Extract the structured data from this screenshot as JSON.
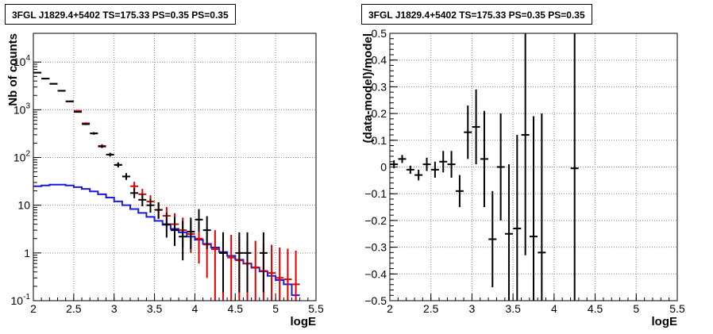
{
  "chart_data": [
    {
      "type": "scatter",
      "title": "3FGL J1829.4+5402 TS=175.33 PS=0.35 PS=0.35",
      "xlabel": "logE",
      "ylabel": "Nb of counts",
      "xlim": [
        2,
        5.5
      ],
      "ylim": [
        0.1,
        40000
      ],
      "yscale": "log",
      "grid": true,
      "xticks": [
        "2",
        "2.5",
        "3",
        "3.5",
        "4",
        "4.5",
        "5",
        "5.5"
      ],
      "yticks": [
        "10^-1",
        "1",
        "10",
        "10^2",
        "10^3",
        "10^4"
      ],
      "series": [
        {
          "kind": "errorbar",
          "color": "#000000",
          "x": [
            2.05,
            2.15,
            2.25,
            2.35,
            2.45,
            2.55,
            2.65,
            2.75,
            2.85,
            2.95,
            3.05,
            3.15,
            3.25,
            3.35,
            3.45,
            3.55,
            3.65,
            3.75,
            3.85,
            3.95,
            4.05,
            4.15,
            4.35,
            4.55,
            4.65,
            4.85
          ],
          "y": [
            6000,
            4500,
            3500,
            2500,
            1500,
            900,
            500,
            320,
            170,
            115,
            70,
            40,
            18,
            13,
            10,
            8,
            4,
            3,
            2.2,
            2.8,
            5,
            3,
            1,
            1,
            1,
            1
          ],
          "yerr_low": [
            70,
            60,
            55,
            45,
            35,
            28,
            22,
            18,
            12,
            10,
            8,
            6,
            4,
            3.5,
            3,
            2.8,
            1.9,
            1.6,
            1.5,
            1.6,
            2.2,
            1.8,
            0.85,
            0.85,
            0.85,
            0.85
          ],
          "yerr_high": [
            80,
            70,
            60,
            50,
            40,
            32,
            24,
            20,
            14,
            11,
            9,
            7,
            5,
            4.3,
            3.8,
            3.5,
            3,
            2.7,
            2.5,
            2.7,
            3.3,
            2.9,
            1.7,
            1.7,
            1.7,
            1.7
          ]
        },
        {
          "kind": "errorbar",
          "color": "#e00000",
          "x": [
            2.05,
            2.15,
            2.25,
            2.35,
            2.45,
            2.55,
            2.65,
            2.75,
            2.85,
            2.95,
            3.05,
            3.15,
            3.25,
            3.35,
            3.45,
            3.55,
            3.65,
            3.75,
            3.85,
            3.95,
            4.05,
            4.15,
            4.25,
            4.35,
            4.45,
            4.55,
            4.65,
            4.75,
            4.85,
            4.95,
            5.05,
            5.15,
            5.25
          ],
          "y": [
            6000,
            4500,
            3500,
            2500,
            1500,
            950,
            520,
            320,
            175,
            115,
            70,
            40,
            25,
            17,
            12,
            8,
            6,
            4,
            3,
            2.5,
            2,
            1.5,
            1.2,
            1,
            0.8,
            0.7,
            0.6,
            0.5,
            0.42,
            0.38,
            0.3,
            0.28,
            0.22
          ],
          "yerr_low": [
            70,
            60,
            55,
            45,
            35,
            28,
            22,
            18,
            13,
            10,
            8,
            6,
            5,
            4,
            3.4,
            2.8,
            2.4,
            2,
            1.7,
            1.5,
            1.4,
            1.2,
            1.1,
            1,
            0.8,
            0.7,
            0.6,
            0.5,
            0.42,
            0.38,
            0.3,
            0.28,
            0.22
          ],
          "yerr_high": [
            80,
            70,
            60,
            50,
            40,
            32,
            24,
            20,
            15,
            11,
            9,
            7,
            6,
            5,
            4.2,
            3.5,
            3.2,
            2.8,
            2.5,
            2.3,
            2.1,
            1.9,
            1.8,
            1.7,
            1.6,
            1.5,
            1.4,
            1.3,
            1.2,
            1.1,
            1.0,
            0.95,
            0.9
          ]
        },
        {
          "kind": "step",
          "color": "#1a1adc",
          "x_edges": [
            2.0,
            2.1,
            2.2,
            2.3,
            2.4,
            2.5,
            2.6,
            2.7,
            2.8,
            2.9,
            3.0,
            3.1,
            3.2,
            3.3,
            3.4,
            3.5,
            3.6,
            3.7,
            3.8,
            3.9,
            4.0,
            4.1,
            4.2,
            4.3,
            4.4,
            4.5,
            4.6,
            4.7,
            4.8,
            4.9,
            5.0,
            5.1,
            5.2,
            5.3
          ],
          "y": [
            25,
            26,
            27,
            27,
            26,
            24,
            22,
            19.5,
            17,
            14.5,
            12,
            10,
            8.3,
            6.9,
            5.7,
            4.7,
            3.9,
            3.2,
            2.7,
            2.2,
            1.9,
            1.55,
            1.3,
            1.05,
            0.87,
            0.72,
            0.6,
            0.49,
            0.41,
            0.33,
            0.27,
            0.22,
            0.13
          ]
        }
      ]
    },
    {
      "type": "scatter",
      "title": "3FGL J1829.4+5402 TS=175.33 PS=0.35 PS=0.35",
      "xlabel": "logE",
      "ylabel": "(data-model)/model",
      "xlim": [
        2,
        5.5
      ],
      "ylim": [
        -0.5,
        0.5
      ],
      "grid": true,
      "xticks": [
        "2",
        "2.5",
        "3",
        "3.5",
        "4",
        "4.5",
        "5",
        "5.5"
      ],
      "yticks": [
        "-0.5",
        "-0.4",
        "-0.3",
        "-0.2",
        "-0.1",
        "0",
        "0.1",
        "0.2",
        "0.3",
        "0.4",
        "0.5"
      ],
      "series": [
        {
          "kind": "errorbar",
          "color": "#000000",
          "x": [
            2.05,
            2.15,
            2.25,
            2.35,
            2.45,
            2.55,
            2.65,
            2.75,
            2.85,
            2.95,
            3.05,
            3.15,
            3.25,
            3.35,
            3.45,
            3.55,
            3.65,
            3.75,
            3.85,
            4.25
          ],
          "y": [
            0.01,
            0.03,
            -0.01,
            -0.03,
            0.01,
            -0.01,
            0.02,
            0.01,
            -0.09,
            0.13,
            0.15,
            0.03,
            -0.27,
            0.0,
            -0.25,
            -0.23,
            0.12,
            -0.26,
            -0.32,
            -0.005
          ],
          "yerr": [
            0.015,
            0.015,
            0.015,
            0.02,
            0.025,
            0.03,
            0.04,
            0.05,
            0.06,
            0.1,
            0.14,
            0.18,
            0.18,
            0.2,
            0.26,
            0.35,
            0.45,
            0.45,
            0.52,
            0.55
          ]
        }
      ]
    }
  ]
}
